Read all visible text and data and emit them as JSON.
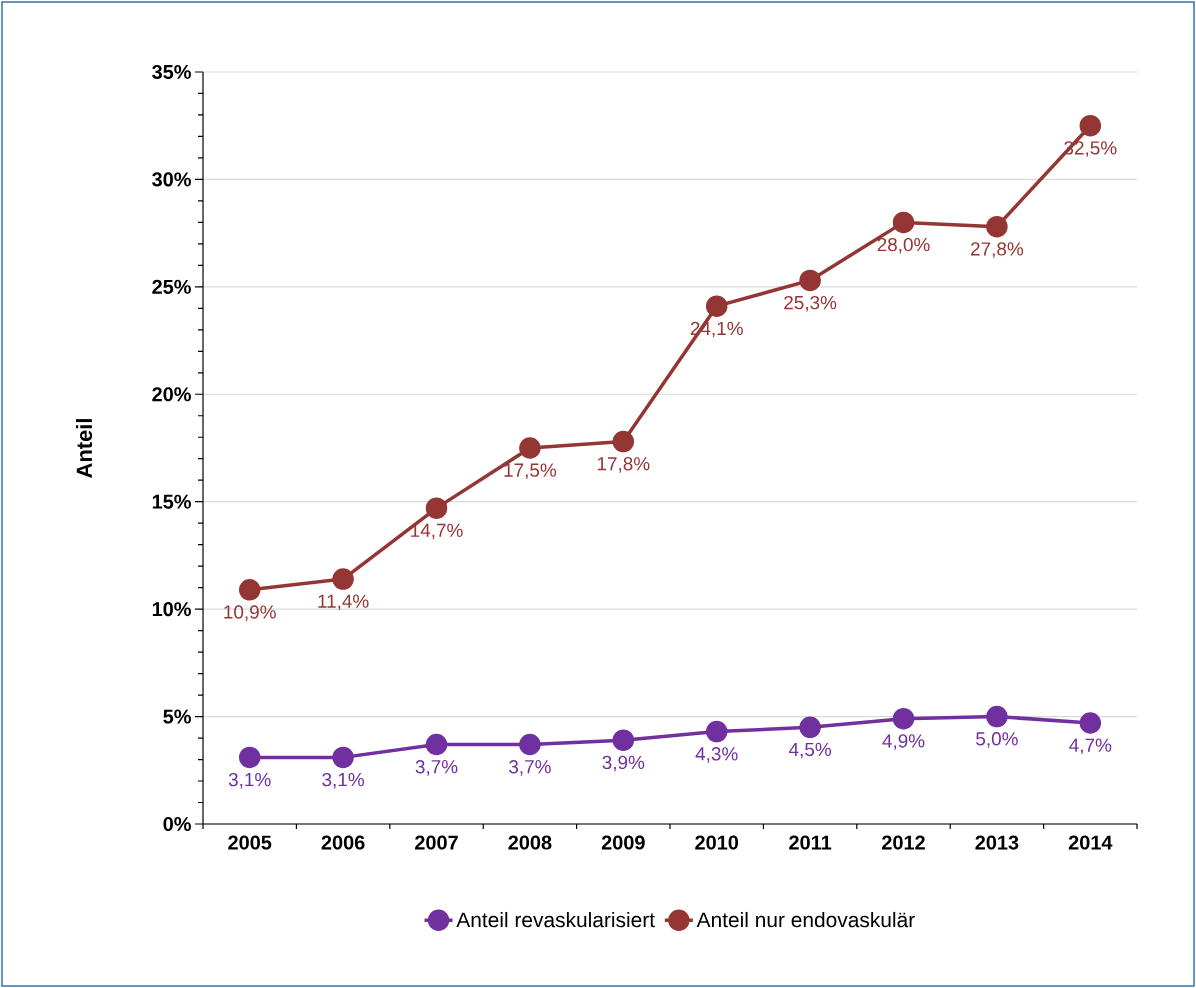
{
  "chart_data": {
    "type": "line",
    "ylabel": "Anteil",
    "categories": [
      "2005",
      "2006",
      "2007",
      "2008",
      "2009",
      "2010",
      "2011",
      "2012",
      "2013",
      "2014"
    ],
    "series": [
      {
        "name": "Anteil revaskularisiert",
        "color": "#7030a0",
        "values": [
          3.1,
          3.1,
          3.7,
          3.7,
          3.9,
          4.3,
          4.5,
          4.9,
          5.0,
          4.7
        ],
        "value_labels": [
          "3,1%",
          "3,1%",
          "3,7%",
          "3,7%",
          "3,9%",
          "4,3%",
          "4,5%",
          "4,9%",
          "5,0%",
          "4,7%"
        ]
      },
      {
        "name": "Anteil nur endovaskulär",
        "color": "#943634",
        "values": [
          10.9,
          11.4,
          14.7,
          17.5,
          17.8,
          24.1,
          25.3,
          28.0,
          27.8,
          32.5
        ],
        "value_labels": [
          "10,9%",
          "11,4%",
          "14,7%",
          "17,5%",
          "17,8%",
          "24,1%",
          "25,3%",
          "28,0%",
          "27,8%",
          "32,5%"
        ]
      }
    ],
    "ylim": [
      0,
      35
    ],
    "yticks": [
      {
        "value": 0,
        "label": "0%"
      },
      {
        "value": 5,
        "label": "5%"
      },
      {
        "value": 10,
        "label": "10%"
      },
      {
        "value": 15,
        "label": "15%"
      },
      {
        "value": 20,
        "label": "20%"
      },
      {
        "value": 25,
        "label": "25%"
      },
      {
        "value": 30,
        "label": "30%"
      },
      {
        "value": 35,
        "label": "35%"
      }
    ],
    "grid": "y",
    "legend": "bottom",
    "marker": "circle",
    "line_style": "solid"
  }
}
